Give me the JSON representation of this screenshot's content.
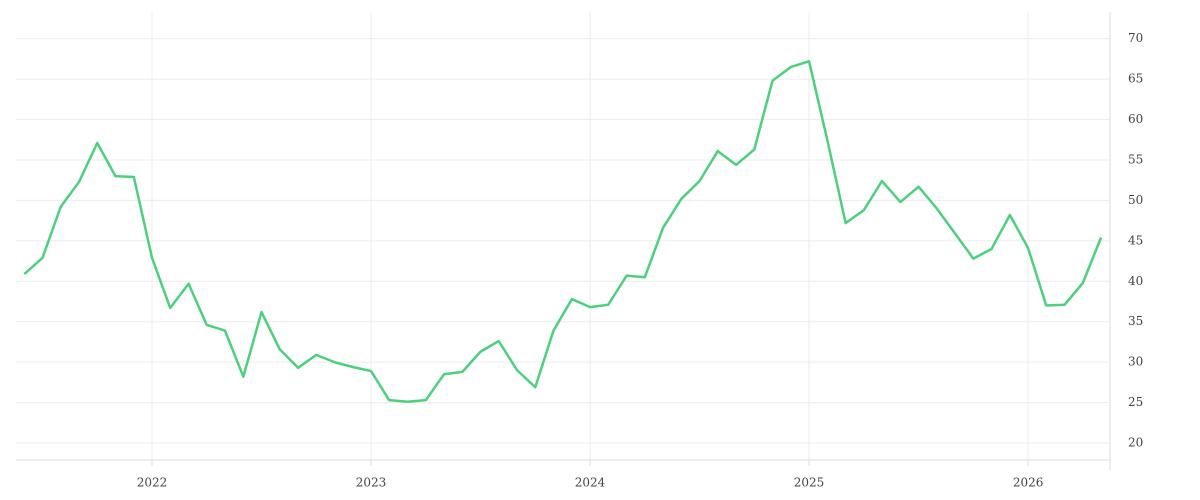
{
  "chart_data": {
    "type": "line",
    "x": [
      2021.417,
      2021.5,
      2021.583,
      2021.667,
      2021.75,
      2021.833,
      2021.917,
      2022.0,
      2022.083,
      2022.167,
      2022.25,
      2022.333,
      2022.417,
      2022.5,
      2022.583,
      2022.667,
      2022.75,
      2022.833,
      2022.917,
      2023.0,
      2023.083,
      2023.167,
      2023.25,
      2023.333,
      2023.417,
      2023.5,
      2023.583,
      2023.667,
      2023.75,
      2023.833,
      2023.917,
      2024.0,
      2024.083,
      2024.167,
      2024.25,
      2024.333,
      2024.417,
      2024.5,
      2024.583,
      2024.667,
      2024.75,
      2024.833,
      2024.917,
      2025.0,
      2025.083,
      2025.167,
      2025.25,
      2025.333,
      2025.417,
      2025.5,
      2025.583,
      2025.667,
      2025.75,
      2025.833,
      2025.917,
      2026.0,
      2026.083,
      2026.167,
      2026.25,
      2026.333
    ],
    "series": [
      {
        "color": "#4cd07d",
        "values": [
          40.9,
          42.9,
          49.2,
          52.3,
          57.1,
          53.0,
          52.9,
          42.9,
          36.7,
          39.7,
          34.6,
          33.9,
          28.2,
          36.2,
          31.6,
          29.3,
          30.9,
          30.0,
          29.4,
          28.9,
          25.3,
          25.1,
          25.3,
          28.5,
          28.8,
          31.3,
          32.6,
          29.0,
          26.9,
          33.9,
          37.8,
          36.8,
          37.1,
          40.7,
          40.5,
          46.6,
          50.2,
          52.4,
          56.1,
          54.4,
          56.3,
          64.8,
          66.5,
          67.2,
          57.5,
          47.2,
          48.8,
          52.4,
          49.8,
          51.7,
          49.0,
          45.9,
          42.8,
          44.0,
          48.2,
          44.1,
          37.0,
          37.1,
          39.8,
          45.4
        ]
      }
    ],
    "xlim": [
      2021.379,
      2026.374
    ],
    "xticks": [
      2022,
      2023,
      2024,
      2025,
      2026
    ],
    "ylim": [
      17.9,
      73.3
    ],
    "yticks": [
      20,
      25,
      30,
      35,
      40,
      45,
      50,
      55,
      60,
      65,
      70
    ],
    "grid": true
  }
}
